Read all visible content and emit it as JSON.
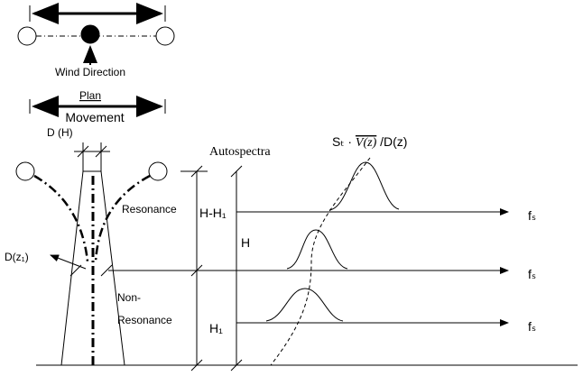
{
  "plan": {
    "wind_direction": "Wind Direction",
    "label": "Plan"
  },
  "tower": {
    "movement": "Movement",
    "top_width": "D (H)",
    "section_width": "D(z₁)",
    "resonance": "Resonance",
    "non_resonance_1": "Non-",
    "non_resonance_2": "Resonance"
  },
  "dimensions": {
    "upper": "H-H₁",
    "total": "H",
    "lower": "H₁"
  },
  "spectra": {
    "title": "Autospectra",
    "formula_1": "Sₜ · ",
    "formula_2": "V(z)",
    "formula_3": " /D(z)",
    "axis_1": "fₛ",
    "axis_2": "fₛ",
    "axis_3": "fₛ"
  }
}
